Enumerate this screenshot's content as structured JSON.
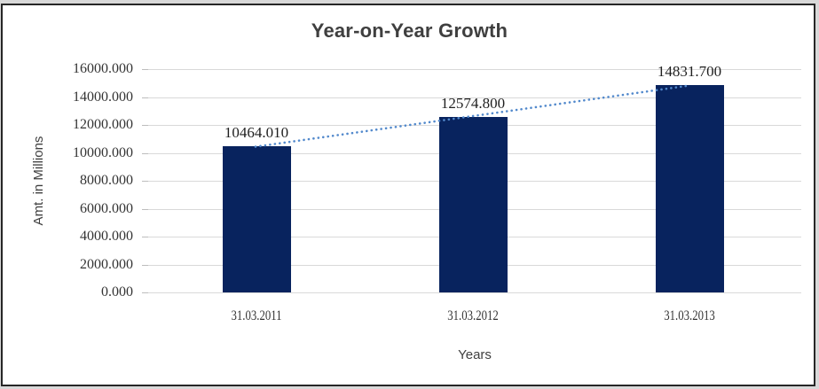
{
  "chart_data": {
    "type": "bar",
    "title": "Year-on-Year Growth",
    "xlabel": "Years",
    "ylabel": "Amt. in Millions",
    "categories": [
      "31.03.2011",
      "31.03.2012",
      "31.03.2013"
    ],
    "values": [
      10464.01,
      12574.8,
      14831.7
    ],
    "data_labels": [
      "10464.010",
      "12574.800",
      "14831.700"
    ],
    "y_ticks": [
      "16000.000",
      "14000.000",
      "12000.000",
      "10000.000",
      "8000.000",
      "6000.000",
      "4000.000",
      "2000.000",
      "0.000"
    ],
    "ylim": [
      0,
      16000
    ],
    "grid": true,
    "legend": "none",
    "trendline": {
      "type": "linear",
      "style": "dotted"
    },
    "colors": {
      "bar": "#08235e",
      "trendline": "#5289cc",
      "gridline": "#d9d9d9",
      "tick_mark": "#bdbdbd",
      "title_text": "#3f3f3f",
      "axis_text": "#404040",
      "label_text": "#1f1f1f"
    }
  }
}
